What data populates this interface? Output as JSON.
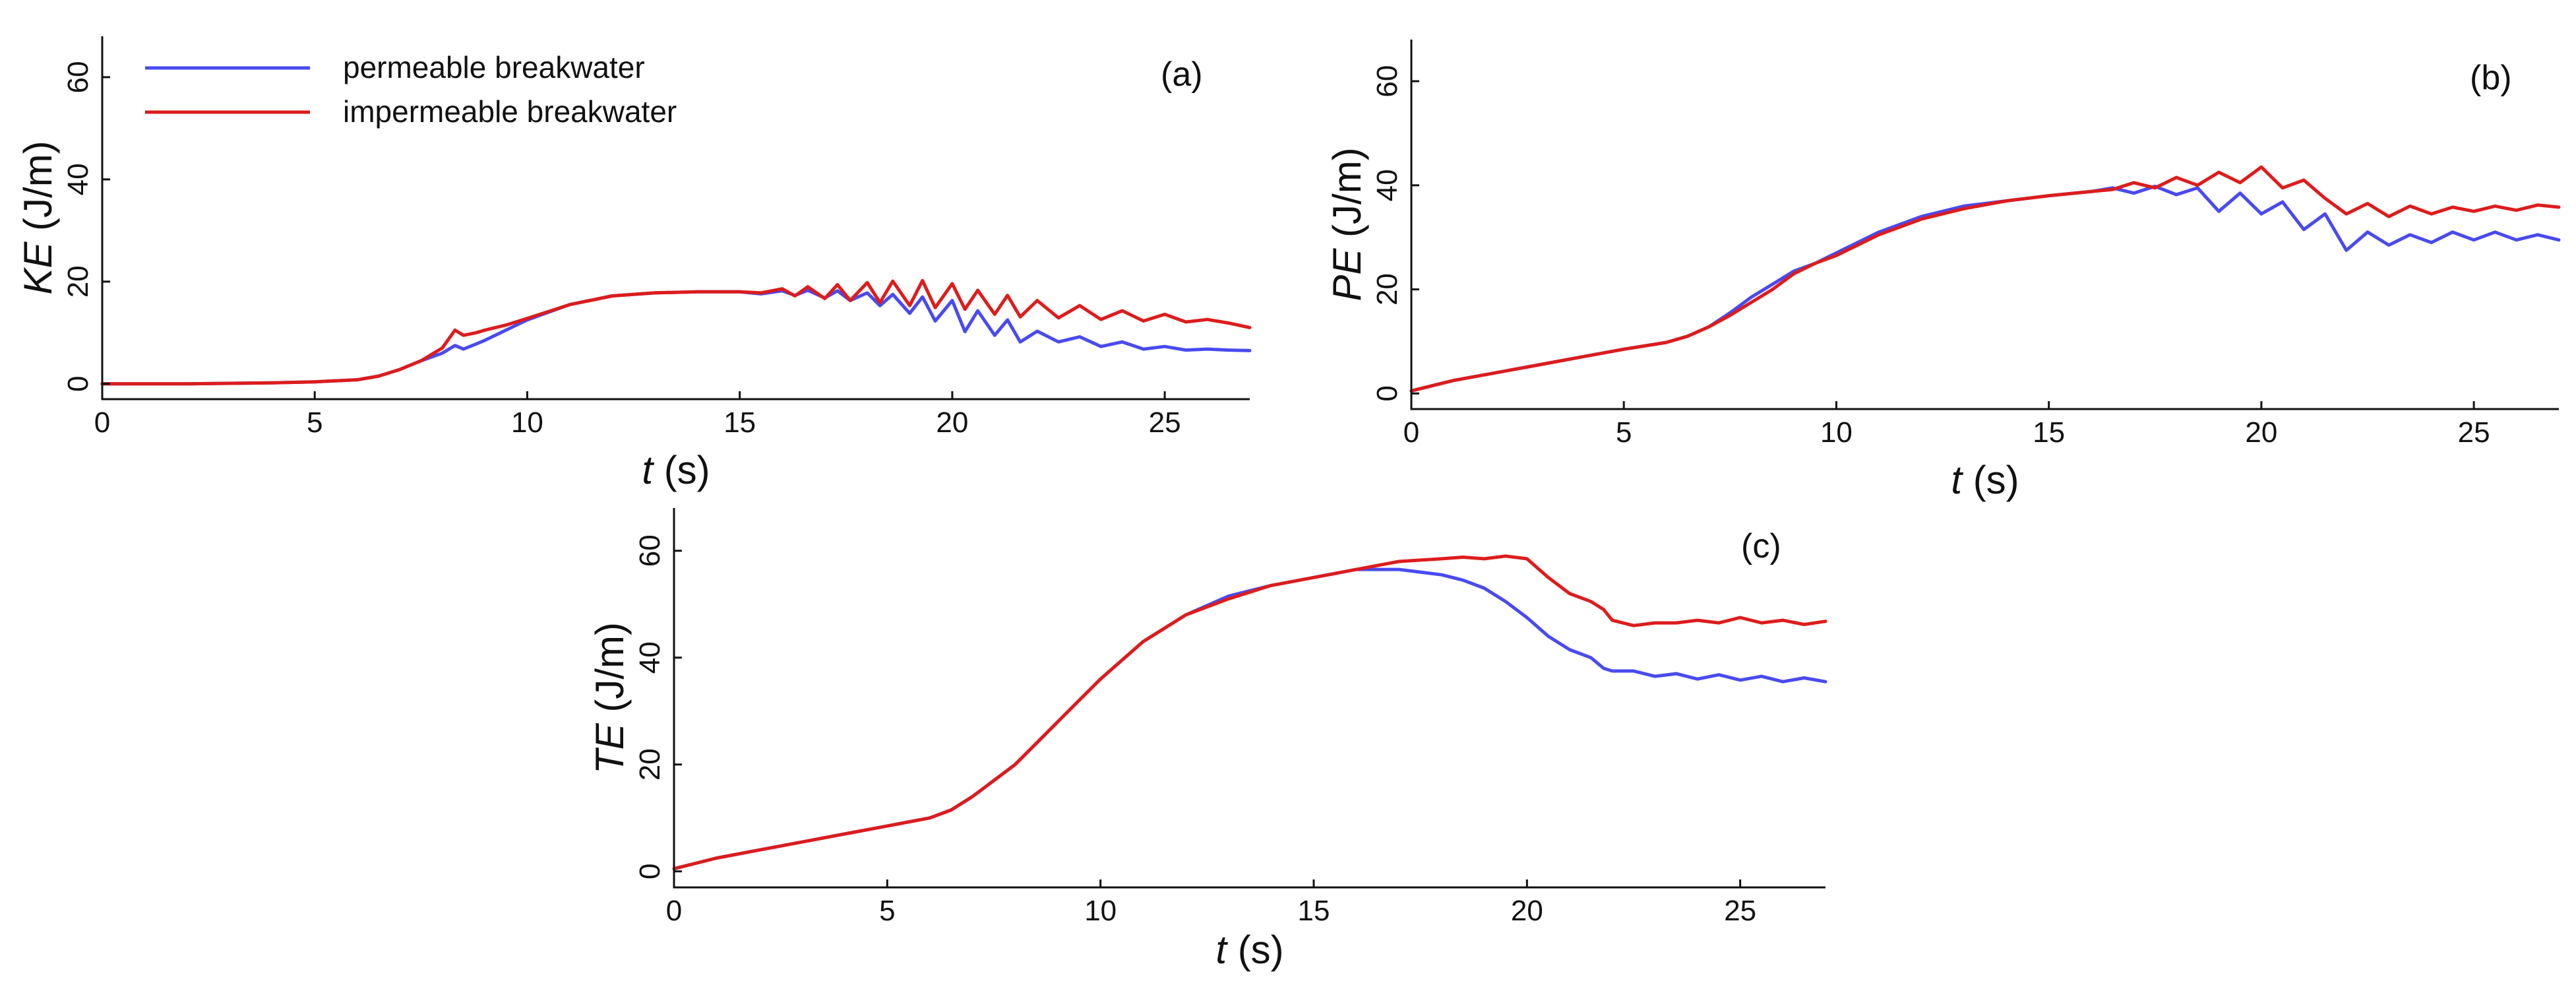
{
  "colors": {
    "permeable": "#4a4af0",
    "impermeable": "#dd1c1c",
    "axis": "#111111"
  },
  "legend": {
    "items": [
      {
        "label": "permeable breakwater",
        "color": "#4a4af0"
      },
      {
        "label": "impermeable breakwater",
        "color": "#dd1c1c"
      }
    ]
  },
  "chart_data": [
    {
      "id": "a",
      "tag": "(a)",
      "type": "line",
      "xlabel_var": "t",
      "xlabel_unit": "(s)",
      "ylabel_var": "KE",
      "ylabel_unit": "(J/m)",
      "xlim": [
        0,
        27
      ],
      "ylim": [
        -3,
        68
      ],
      "xticks": [
        0,
        5,
        10,
        15,
        20,
        25
      ],
      "yticks": [
        0,
        20,
        40,
        60
      ],
      "series": [
        {
          "name": "permeable breakwater",
          "color": "#4a4af0",
          "x": [
            0,
            1,
            2,
            3,
            4,
            5,
            6,
            6.5,
            7,
            7.5,
            8,
            8.3,
            8.5,
            8.8,
            9,
            9.5,
            10,
            11,
            12,
            13,
            14,
            15,
            15.5,
            16,
            16.3,
            16.6,
            17,
            17.3,
            17.6,
            18,
            18.3,
            18.6,
            19,
            19.3,
            19.6,
            20,
            20.3,
            20.6,
            21,
            21.3,
            21.6,
            22,
            22.5,
            23,
            23.5,
            24,
            24.5,
            25,
            25.5,
            26,
            26.5,
            27
          ],
          "y": [
            0,
            0,
            0,
            0.1,
            0.2,
            0.4,
            0.8,
            1.5,
            2.8,
            4.5,
            6,
            7.5,
            6.8,
            7.8,
            8.5,
            10.5,
            12.5,
            15.5,
            17.2,
            17.8,
            18,
            18,
            17.6,
            18.2,
            17.3,
            18.3,
            16.8,
            18.2,
            16.3,
            17.8,
            15.3,
            17.5,
            13.8,
            17,
            12.3,
            16.3,
            10.2,
            14.3,
            9.5,
            12.5,
            8.2,
            10.3,
            8.2,
            9.2,
            7.3,
            8.2,
            6.8,
            7.3,
            6.6,
            6.8,
            6.6,
            6.5
          ]
        },
        {
          "name": "impermeable breakwater",
          "color": "#dd1c1c",
          "x": [
            0,
            1,
            2,
            3,
            4,
            5,
            6,
            6.5,
            7,
            7.5,
            8,
            8.3,
            8.5,
            8.8,
            9,
            9.5,
            10,
            11,
            12,
            13,
            14,
            15,
            15.5,
            16,
            16.3,
            16.6,
            17,
            17.3,
            17.6,
            18,
            18.3,
            18.6,
            19,
            19.3,
            19.6,
            20,
            20.3,
            20.6,
            21,
            21.3,
            21.6,
            22,
            22.5,
            23,
            23.5,
            24,
            24.5,
            25,
            25.5,
            26,
            26.5,
            27
          ],
          "y": [
            0,
            0,
            0,
            0.1,
            0.2,
            0.4,
            0.8,
            1.5,
            2.8,
            4.5,
            7,
            10.5,
            9.5,
            10,
            10.5,
            11.5,
            12.8,
            15.5,
            17.2,
            17.8,
            18,
            18,
            17.8,
            18.6,
            17.2,
            19,
            16.7,
            19.4,
            16.3,
            19.8,
            15.9,
            20.1,
            15.3,
            20.2,
            14.9,
            19.6,
            14.6,
            18.3,
            13.6,
            17.3,
            13.1,
            16.3,
            12.9,
            15.3,
            12.6,
            14.3,
            12.3,
            13.6,
            12.1,
            12.6,
            11.9,
            11
          ]
        }
      ]
    },
    {
      "id": "b",
      "tag": "(b)",
      "type": "line",
      "xlabel_var": "t",
      "xlabel_unit": "(s)",
      "ylabel_var": "PE",
      "ylabel_unit": "(J/m)",
      "xlim": [
        0,
        27
      ],
      "ylim": [
        -3,
        68
      ],
      "xticks": [
        0,
        5,
        10,
        15,
        20,
        25
      ],
      "yticks": [
        0,
        20,
        40,
        60
      ],
      "series": [
        {
          "name": "permeable breakwater",
          "color": "#4a4af0",
          "x": [
            0,
            1,
            2,
            3,
            4,
            5,
            6,
            6.5,
            7,
            7.5,
            8,
            8.5,
            9,
            9.5,
            10,
            11,
            12,
            13,
            14,
            15,
            16,
            16.5,
            17,
            17.5,
            18,
            18.5,
            19,
            19.5,
            20,
            20.5,
            21,
            21.5,
            22,
            22.5,
            23,
            23.5,
            24,
            24.5,
            25,
            25.5,
            26,
            26.5,
            27
          ],
          "y": [
            0.5,
            2.5,
            4,
            5.5,
            7,
            8.5,
            9.8,
            11,
            12.8,
            15.5,
            18.5,
            21,
            23.5,
            25,
            27,
            31,
            34,
            36,
            37,
            38,
            38.8,
            39.5,
            38.5,
            39.8,
            38.2,
            39.5,
            35,
            38.5,
            34.5,
            36.8,
            31.5,
            34.5,
            27.5,
            31,
            28.5,
            30.5,
            29,
            31,
            29.5,
            31,
            29.5,
            30.5,
            29.5
          ]
        },
        {
          "name": "impermeable breakwater",
          "color": "#dd1c1c",
          "x": [
            0,
            1,
            2,
            3,
            4,
            5,
            6,
            6.5,
            7,
            7.5,
            8,
            8.5,
            9,
            9.5,
            10,
            11,
            12,
            13,
            14,
            15,
            16,
            16.5,
            17,
            17.5,
            18,
            18.5,
            19,
            19.5,
            20,
            20.5,
            21,
            21.5,
            22,
            22.5,
            23,
            23.5,
            24,
            24.5,
            25,
            25.5,
            26,
            26.5,
            27
          ],
          "y": [
            0.5,
            2.5,
            4,
            5.5,
            7,
            8.5,
            9.8,
            11,
            12.8,
            15,
            17.5,
            20,
            23,
            25,
            26.5,
            30.5,
            33.5,
            35.5,
            37,
            38,
            38.8,
            39.2,
            40.5,
            39.5,
            41.5,
            40,
            42.5,
            40.5,
            43.5,
            39.5,
            41,
            37.5,
            34.5,
            36.5,
            34,
            36,
            34.5,
            35.8,
            35,
            36,
            35.2,
            36.2,
            35.8
          ]
        }
      ]
    },
    {
      "id": "c",
      "tag": "(c)",
      "type": "line",
      "xlabel_var": "t",
      "xlabel_unit": "(s)",
      "ylabel_var": "TE",
      "ylabel_unit": "(J/m)",
      "xlim": [
        0,
        27
      ],
      "ylim": [
        -3,
        68
      ],
      "xticks": [
        0,
        5,
        10,
        15,
        20,
        25
      ],
      "yticks": [
        0,
        20,
        40,
        60
      ],
      "series": [
        {
          "name": "permeable breakwater",
          "color": "#4a4af0",
          "x": [
            0,
            1,
            2,
            3,
            4,
            5,
            6,
            6.5,
            7,
            7.5,
            8,
            8.5,
            9,
            9.5,
            10,
            11,
            12,
            13,
            14,
            15,
            16,
            17,
            18,
            18.5,
            19,
            19.5,
            20,
            20.5,
            21,
            21.5,
            21.8,
            22,
            22.5,
            23,
            23.5,
            24,
            24.5,
            25,
            25.5,
            26,
            26.5,
            27
          ],
          "y": [
            0.5,
            2.5,
            4,
            5.5,
            7,
            8.5,
            10,
            11.5,
            14,
            17,
            20,
            24,
            28,
            32,
            36,
            43,
            48,
            51.5,
            53.5,
            55,
            56.5,
            56.5,
            55.5,
            54.5,
            53,
            50.5,
            47.5,
            44,
            41.5,
            40,
            38,
            37.5,
            37.5,
            36.5,
            37,
            36,
            36.8,
            35.8,
            36.5,
            35.5,
            36.2,
            35.5
          ]
        },
        {
          "name": "impermeable breakwater",
          "color": "#dd1c1c",
          "x": [
            0,
            1,
            2,
            3,
            4,
            5,
            6,
            6.5,
            7,
            7.5,
            8,
            8.5,
            9,
            9.5,
            10,
            11,
            12,
            13,
            14,
            15,
            16,
            17,
            18,
            18.5,
            19,
            19.5,
            20,
            20.5,
            21,
            21.5,
            21.8,
            22,
            22.5,
            23,
            23.5,
            24,
            24.5,
            25,
            25.5,
            26,
            26.5,
            27
          ],
          "y": [
            0.5,
            2.5,
            4,
            5.5,
            7,
            8.5,
            10,
            11.5,
            14,
            17,
            20,
            24,
            28,
            32,
            36,
            43,
            48,
            51,
            53.5,
            55,
            56.5,
            58,
            58.5,
            58.8,
            58.5,
            59,
            58.5,
            55,
            52,
            50.5,
            49,
            47,
            46,
            46.5,
            46.5,
            47,
            46.5,
            47.5,
            46.5,
            47,
            46.2,
            46.8
          ]
        }
      ]
    }
  ]
}
